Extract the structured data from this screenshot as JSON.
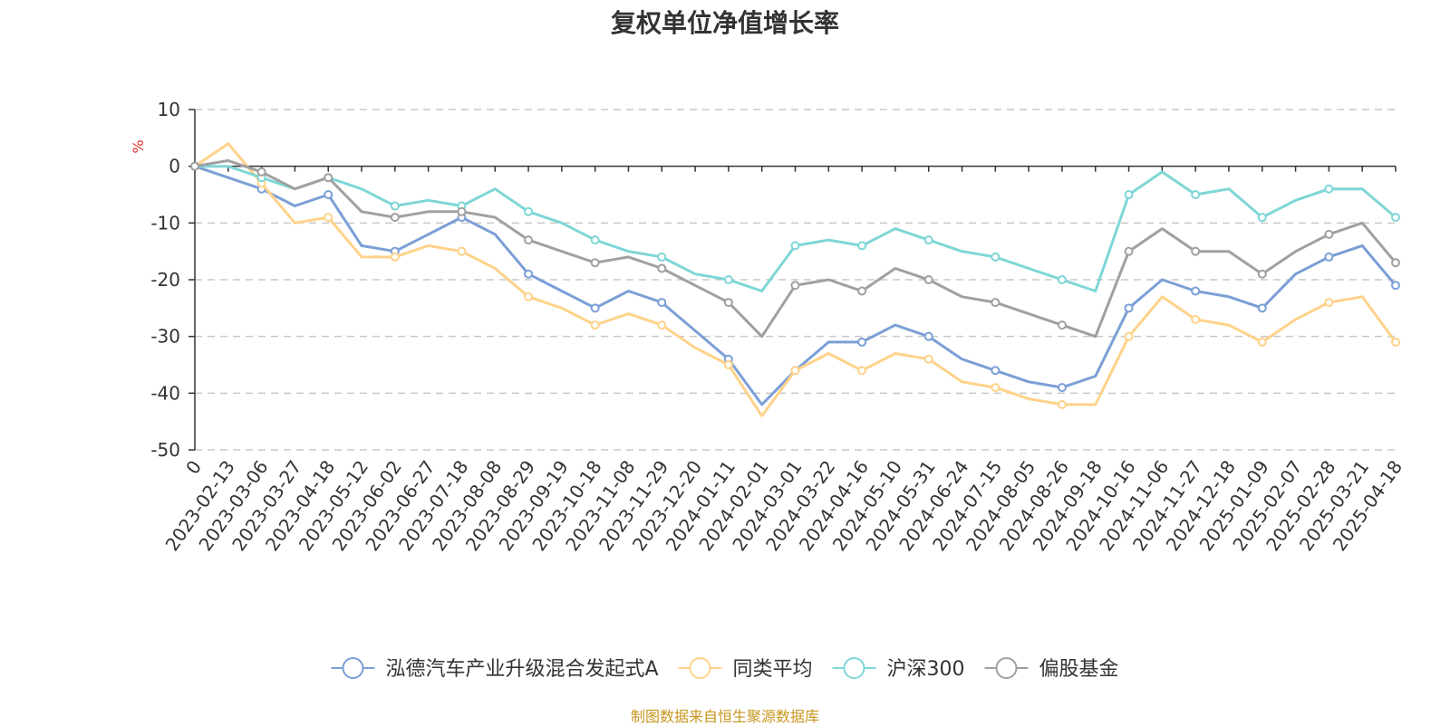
{
  "chart_data": {
    "type": "line",
    "title": "复权单位净值增长率",
    "ylabel": "%",
    "ylim": [
      -50,
      10
    ],
    "yticks": [
      10,
      0,
      -10,
      -20,
      -30,
      -40,
      -50
    ],
    "grid": "horizontal-dashed",
    "legend_position": "bottom-center",
    "x_categories": [
      "0",
      "2023-02-13",
      "2023-03-06",
      "2023-03-27",
      "2023-04-18",
      "2023-05-12",
      "2023-06-02",
      "2023-06-27",
      "2023-07-18",
      "2023-08-08",
      "2023-08-29",
      "2023-09-19",
      "2023-10-18",
      "2023-11-08",
      "2023-11-29",
      "2023-12-20",
      "2024-01-11",
      "2024-02-01",
      "2024-03-01",
      "2024-03-22",
      "2024-04-16",
      "2024-05-10",
      "2024-05-31",
      "2024-06-24",
      "2024-07-15",
      "2024-08-05",
      "2024-08-26",
      "2024-09-18",
      "2024-10-16",
      "2024-11-06",
      "2024-11-27",
      "2024-12-18",
      "2025-01-09",
      "2025-02-07",
      "2025-02-28",
      "2025-03-21",
      "2025-04-18"
    ],
    "series": [
      {
        "name": "泓德汽车产业升级混合发起式A",
        "color": "#7b9fd6",
        "values": [
          0,
          -2,
          -4,
          -7,
          -5,
          -14,
          -15,
          -12,
          -9,
          -12,
          -19,
          -22,
          -25,
          -22,
          -24,
          -29,
          -34,
          -42,
          -36,
          -31,
          -31,
          -28,
          -30,
          -34,
          -36,
          -38,
          -39,
          -37,
          -25,
          -20,
          -22,
          -23,
          -25,
          -19,
          -16,
          -14,
          -21
        ]
      },
      {
        "name": "同类平均",
        "color": "#ffd28a",
        "values": [
          0,
          4,
          -3,
          -10,
          -9,
          -16,
          -16,
          -14,
          -15,
          -18,
          -23,
          -25,
          -28,
          -26,
          -28,
          -32,
          -35,
          -44,
          -36,
          -33,
          -36,
          -33,
          -34,
          -38,
          -39,
          -41,
          -42,
          -42,
          -30,
          -23,
          -27,
          -28,
          -31,
          -27,
          -24,
          -23,
          -31
        ]
      },
      {
        "name": "沪深300",
        "color": "#7fd6d6",
        "values": [
          0,
          0,
          -2,
          -4,
          -2,
          -4,
          -7,
          -6,
          -7,
          -4,
          -8,
          -10,
          -13,
          -15,
          -16,
          -19,
          -20,
          -22,
          -14,
          -13,
          -14,
          -11,
          -13,
          -15,
          -16,
          -18,
          -20,
          -22,
          -5,
          -1,
          -5,
          -4,
          -9,
          -6,
          -4,
          -4,
          -9
        ]
      },
      {
        "name": "偏股基金",
        "color": "#a0a0a0",
        "values": [
          0,
          1,
          -1,
          -4,
          -2,
          -8,
          -9,
          -8,
          -8,
          -9,
          -13,
          -15,
          -17,
          -16,
          -18,
          -21,
          -24,
          -30,
          -21,
          -20,
          -22,
          -18,
          -20,
          -23,
          -24,
          -26,
          -28,
          -30,
          -15,
          -11,
          -15,
          -15,
          -19,
          -15,
          -12,
          -10,
          -17
        ]
      }
    ]
  },
  "source_note": "制图数据来自恒生聚源数据库"
}
